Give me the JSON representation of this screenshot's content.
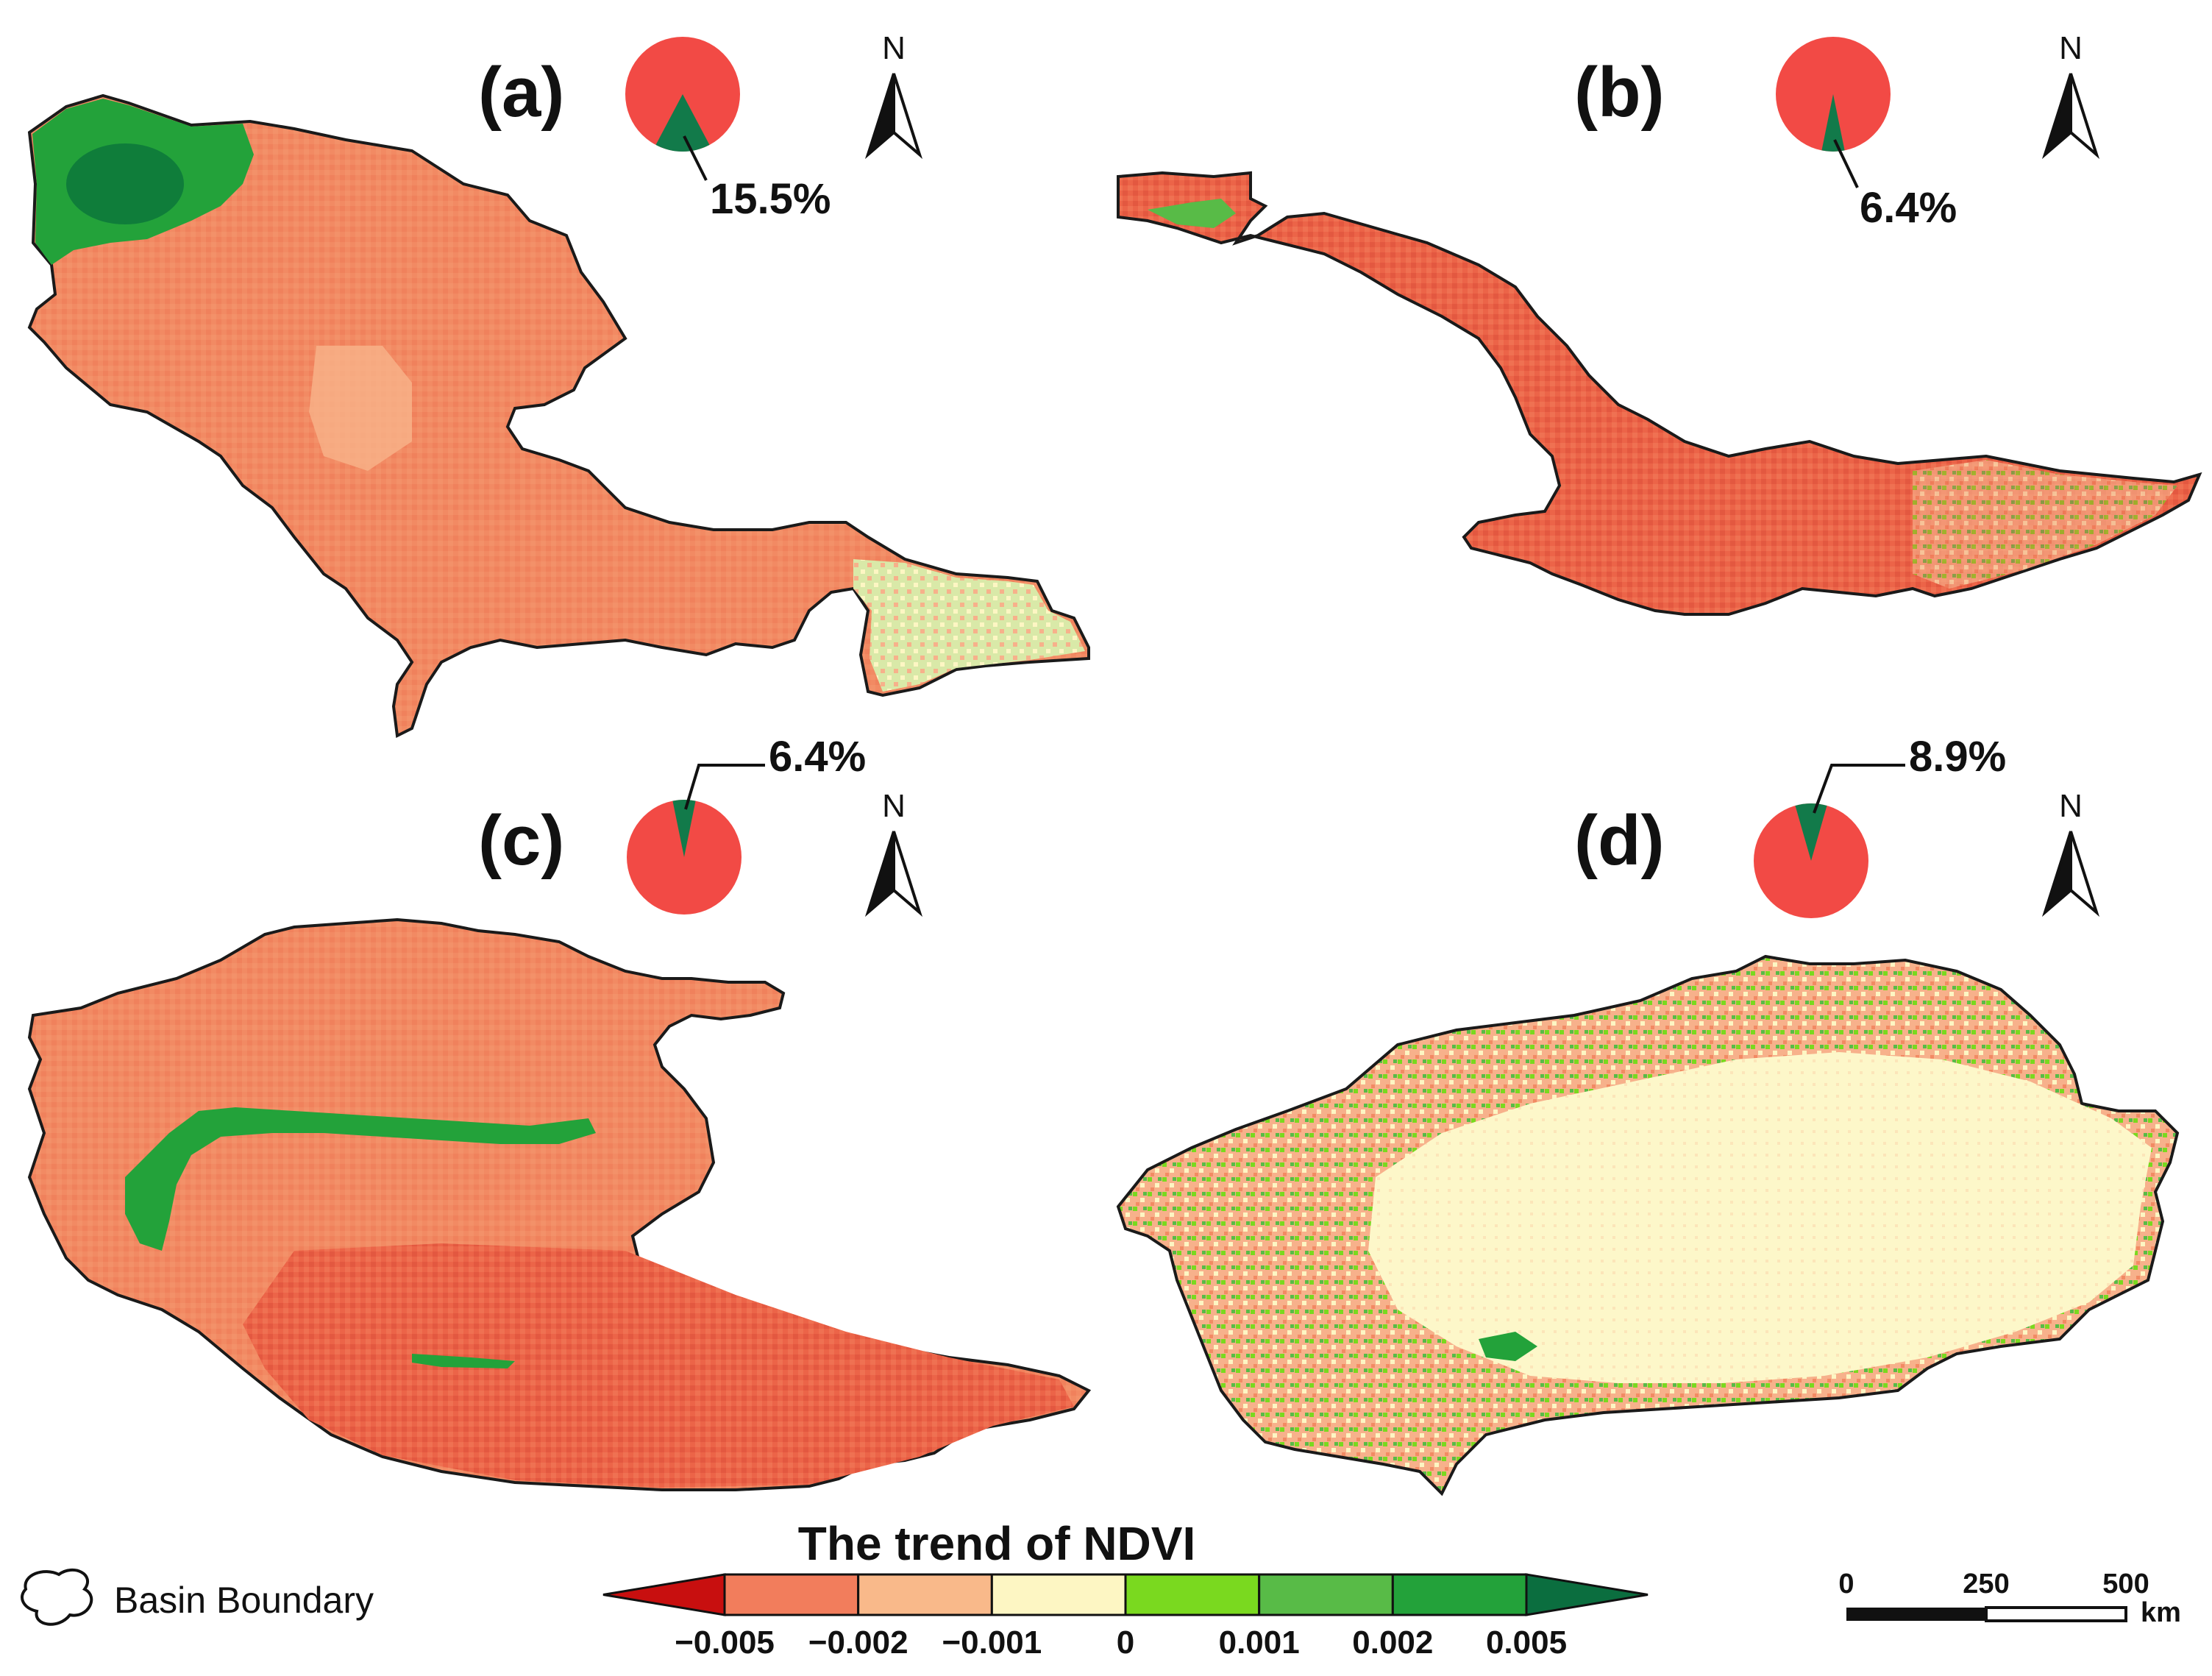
{
  "panels": [
    {
      "id": "a",
      "label": "(a)",
      "positive_share": 15.5,
      "positive_label": "15.5%"
    },
    {
      "id": "b",
      "label": "(b)",
      "positive_share": 6.4,
      "positive_label": "6.4%"
    },
    {
      "id": "c",
      "label": "(c)",
      "positive_share": 6.4,
      "positive_label": "6.4%"
    },
    {
      "id": "d",
      "label": "(d)",
      "positive_share": 8.9,
      "positive_label": "8.9%"
    }
  ],
  "north_label": "N",
  "pie_colors": {
    "negative": "#f24a45",
    "positive": "#127a4a"
  },
  "legend": {
    "title": "The trend of NDVI",
    "ticks": [
      "-0.005",
      "-0.002",
      "-0.001",
      "0",
      "0.001",
      "0.002",
      "0.005"
    ],
    "colors": [
      "#c80f0f",
      "#f27d5c",
      "#f9b98a",
      "#fdf6c3",
      "#7ad91f",
      "#58bb47",
      "#23a23a",
      "#0b6e3f"
    ]
  },
  "basin_boundary_label": "Basin Boundary",
  "scale_bar": {
    "ticks": [
      "0",
      "250",
      "500"
    ],
    "unit": "km"
  }
}
